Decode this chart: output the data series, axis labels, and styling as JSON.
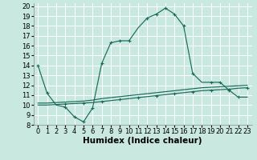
{
  "xlabel": "Humidex (Indice chaleur)",
  "bg_color": "#c8e8e0",
  "grid_color": "#ffffff",
  "line_color": "#1a6b5a",
  "xlim": [
    -0.5,
    23.5
  ],
  "ylim": [
    8,
    20.3
  ],
  "xticks": [
    0,
    1,
    2,
    3,
    4,
    5,
    6,
    7,
    8,
    9,
    10,
    11,
    12,
    13,
    14,
    15,
    16,
    17,
    18,
    19,
    20,
    21,
    22,
    23
  ],
  "yticks": [
    8,
    9,
    10,
    11,
    12,
    13,
    14,
    15,
    16,
    17,
    18,
    19,
    20
  ],
  "line1_x": [
    0,
    1,
    2,
    3,
    4,
    5,
    6,
    7,
    8,
    9,
    10,
    11,
    12,
    13,
    14,
    15,
    16,
    17,
    18,
    19,
    20,
    21,
    22,
    23
  ],
  "line1_y": [
    14.0,
    11.2,
    10.0,
    9.8,
    8.8,
    8.3,
    9.7,
    14.2,
    16.3,
    16.5,
    16.5,
    17.8,
    18.8,
    19.2,
    19.8,
    19.2,
    18.0,
    13.2,
    12.3,
    12.3,
    12.3,
    11.5,
    10.8,
    10.8
  ],
  "line2_x": [
    0,
    1,
    2,
    3,
    4,
    5,
    6,
    7,
    8,
    9,
    10,
    11,
    12,
    13,
    14,
    15,
    16,
    17,
    18,
    19,
    20,
    21,
    22,
    23
  ],
  "line2_y": [
    10.0,
    10.0,
    10.05,
    10.1,
    10.15,
    10.2,
    10.25,
    10.35,
    10.45,
    10.55,
    10.65,
    10.75,
    10.85,
    10.95,
    11.05,
    11.15,
    11.25,
    11.35,
    11.45,
    11.5,
    11.55,
    11.6,
    11.7,
    11.75
  ],
  "line3_x": [
    0,
    1,
    2,
    3,
    4,
    5,
    6,
    7,
    8,
    9,
    10,
    11,
    12,
    13,
    14,
    15,
    16,
    17,
    18,
    19,
    20,
    21,
    22,
    23
  ],
  "line3_y": [
    10.2,
    10.2,
    10.25,
    10.3,
    10.35,
    10.4,
    10.5,
    10.65,
    10.75,
    10.85,
    10.95,
    11.05,
    11.15,
    11.25,
    11.35,
    11.45,
    11.55,
    11.65,
    11.75,
    11.8,
    11.85,
    11.9,
    11.95,
    12.0
  ],
  "markers1_x": [
    0,
    1,
    3,
    4,
    5,
    6,
    7,
    8,
    9,
    10,
    12,
    13,
    14,
    15,
    16,
    17,
    19,
    20,
    21,
    22
  ],
  "markers1_y": [
    14.0,
    11.2,
    9.8,
    8.8,
    8.3,
    9.7,
    14.2,
    16.3,
    16.5,
    16.5,
    18.8,
    19.2,
    19.8,
    19.2,
    18.0,
    13.2,
    12.3,
    12.3,
    11.5,
    10.8
  ],
  "markers2_x": [
    3,
    5,
    7,
    9,
    11,
    13,
    15,
    17,
    19,
    21,
    23
  ],
  "markers2_y": [
    10.1,
    10.2,
    10.35,
    10.55,
    10.75,
    10.95,
    11.15,
    11.35,
    11.5,
    11.6,
    11.75
  ],
  "xlabel_fontsize": 7.5,
  "tick_fontsize": 6
}
